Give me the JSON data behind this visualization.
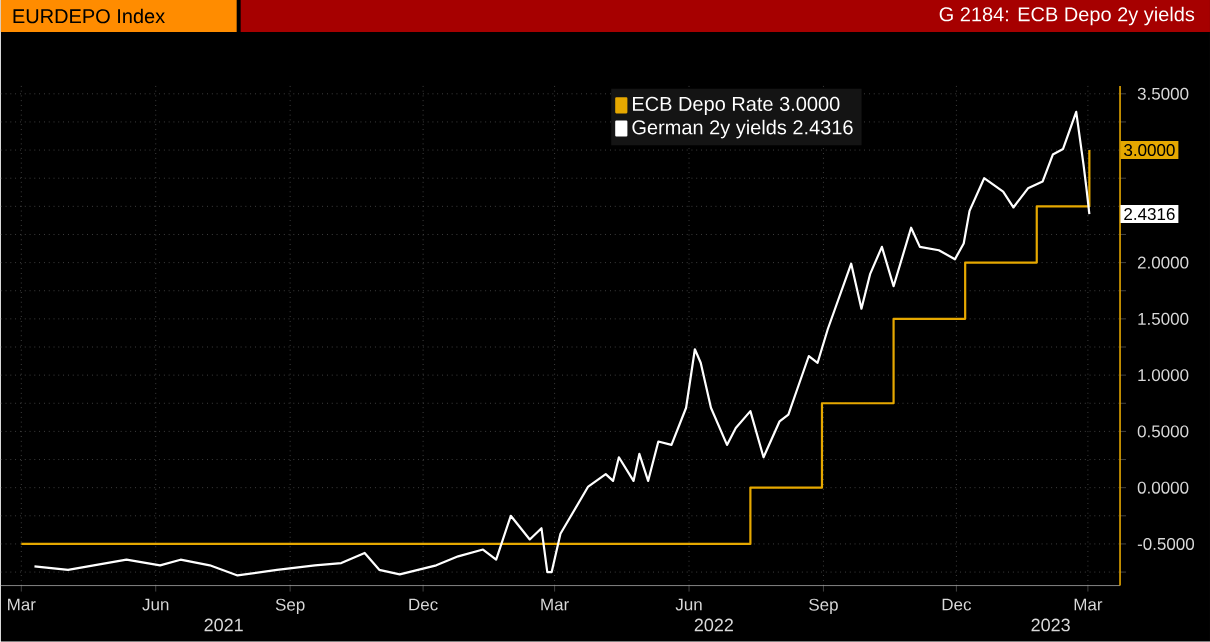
{
  "chart_data": {
    "type": "line",
    "title": "G 2184: ECB Depo 2y yields",
    "subtitle": "EURDEPO Index",
    "xlim": [
      "2021-03-01",
      "2023-04-06"
    ],
    "xticks": [
      {
        "value": "2021-03-15",
        "label": "Mar"
      },
      {
        "value": "2021-06-15",
        "label": "Jun"
      },
      {
        "value": "2021-09-15",
        "label": "Sep"
      },
      {
        "value": "2021-12-15",
        "label": "Dec"
      },
      {
        "value": "2022-03-15",
        "label": "Mar"
      },
      {
        "value": "2022-06-15",
        "label": "Jun"
      },
      {
        "value": "2022-09-15",
        "label": "Sep"
      },
      {
        "value": "2022-12-15",
        "label": "Dec"
      },
      {
        "value": "2023-03-15",
        "label": "Mar"
      }
    ],
    "ylim": [
      -0.87,
      3.57
    ],
    "yticks": [
      {
        "value": -0.75,
        "label": null
      },
      {
        "value": -0.5,
        "label": "-0.5000"
      },
      {
        "value": -0.25,
        "label": null
      },
      {
        "value": 0,
        "label": "0.0000"
      },
      {
        "value": 0.25,
        "label": null
      },
      {
        "value": 0.5,
        "label": "0.5000"
      },
      {
        "value": 0.75,
        "label": null
      },
      {
        "value": 1,
        "label": "1.0000"
      },
      {
        "value": 1.25,
        "label": null
      },
      {
        "value": 1.5,
        "label": "1.5000"
      },
      {
        "value": 1.75,
        "label": null
      },
      {
        "value": 2,
        "label": "2.0000"
      },
      {
        "value": 2.25,
        "label": null
      },
      {
        "value": 2.5,
        "label": null
      },
      {
        "value": 2.75,
        "label": null
      },
      {
        "value": 3,
        "label": null
      },
      {
        "value": 3.25,
        "label": null
      },
      {
        "value": 3.5,
        "label": "3.5000"
      }
    ],
    "grid": true,
    "legend": "top",
    "series": [
      {
        "name": "ECB Depo Rate 3.0000",
        "type": "step",
        "color": "#e6a800",
        "x": [
          "2021-03-15",
          "2022-07-27",
          "2022-09-14",
          "2022-11-02",
          "2022-12-21",
          "2023-02-08",
          "2023-03-16"
        ],
        "values": [
          -0.5,
          0,
          0.75,
          1.5,
          2.0,
          2.5,
          3.0
        ]
      },
      {
        "name": "German 2y yields 2.4316",
        "color": "#ffffff",
        "x": [
          "2021-03-24",
          "2021-04-16",
          "2021-05-26",
          "2021-06-18",
          "2021-07-02",
          "2021-07-22",
          "2021-08-10",
          "2021-09-06",
          "2021-10-02",
          "2021-10-20",
          "2021-11-05",
          "2021-11-15",
          "2021-11-29",
          "2021-12-24",
          "2022-01-08",
          "2022-01-25",
          "2022-02-03",
          "2022-02-13",
          "2022-02-26",
          "2022-03-06",
          "2022-03-10",
          "2022-03-13",
          "2022-03-19",
          "2022-04-07",
          "2022-04-19",
          "2022-04-24",
          "2022-04-28",
          "2022-05-08",
          "2022-05-12",
          "2022-05-18",
          "2022-05-25",
          "2022-06-03",
          "2022-06-13",
          "2022-06-19",
          "2022-06-23",
          "2022-06-30",
          "2022-07-11",
          "2022-07-17",
          "2022-07-27",
          "2022-08-05",
          "2022-08-16",
          "2022-08-22",
          "2022-08-29",
          "2022-09-05",
          "2022-09-11",
          "2022-09-18",
          "2022-10-04",
          "2022-10-11",
          "2022-10-17",
          "2022-10-25",
          "2022-11-02",
          "2022-11-14",
          "2022-11-20",
          "2022-12-03",
          "2022-12-14",
          "2022-12-20",
          "2022-12-24",
          "2023-01-03",
          "2023-01-16",
          "2023-01-23",
          "2023-02-02",
          "2023-02-12",
          "2023-02-19",
          "2023-02-26",
          "2023-03-07",
          "2023-03-12",
          "2023-03-14",
          "2023-03-16"
        ],
        "values": [
          -0.7,
          -0.73,
          -0.64,
          -0.69,
          -0.64,
          -0.69,
          -0.78,
          -0.73,
          -0.69,
          -0.67,
          -0.58,
          -0.73,
          -0.77,
          -0.69,
          -0.61,
          -0.55,
          -0.64,
          -0.25,
          -0.46,
          -0.36,
          -0.75,
          -0.75,
          -0.41,
          0.01,
          0.12,
          0.06,
          0.27,
          0.06,
          0.3,
          0.06,
          0.41,
          0.38,
          0.71,
          1.23,
          1.11,
          0.71,
          0.38,
          0.53,
          0.68,
          0.27,
          0.59,
          0.65,
          0.91,
          1.17,
          1.11,
          1.41,
          1.99,
          1.59,
          1.9,
          2.14,
          1.79,
          2.31,
          2.14,
          2.11,
          2.03,
          2.17,
          2.46,
          2.75,
          2.63,
          2.49,
          2.66,
          2.72,
          2.96,
          3.01,
          3.34,
          2.87,
          2.66,
          2.4316
        ]
      }
    ],
    "annotations": [
      {
        "text": "3.0000",
        "x": "2023-03-16",
        "y": 3.0
      },
      {
        "text": "2.4316",
        "x": "2023-03-16",
        "y": 2.4316
      },
      "2021",
      "2022",
      "2023"
    ]
  }
}
